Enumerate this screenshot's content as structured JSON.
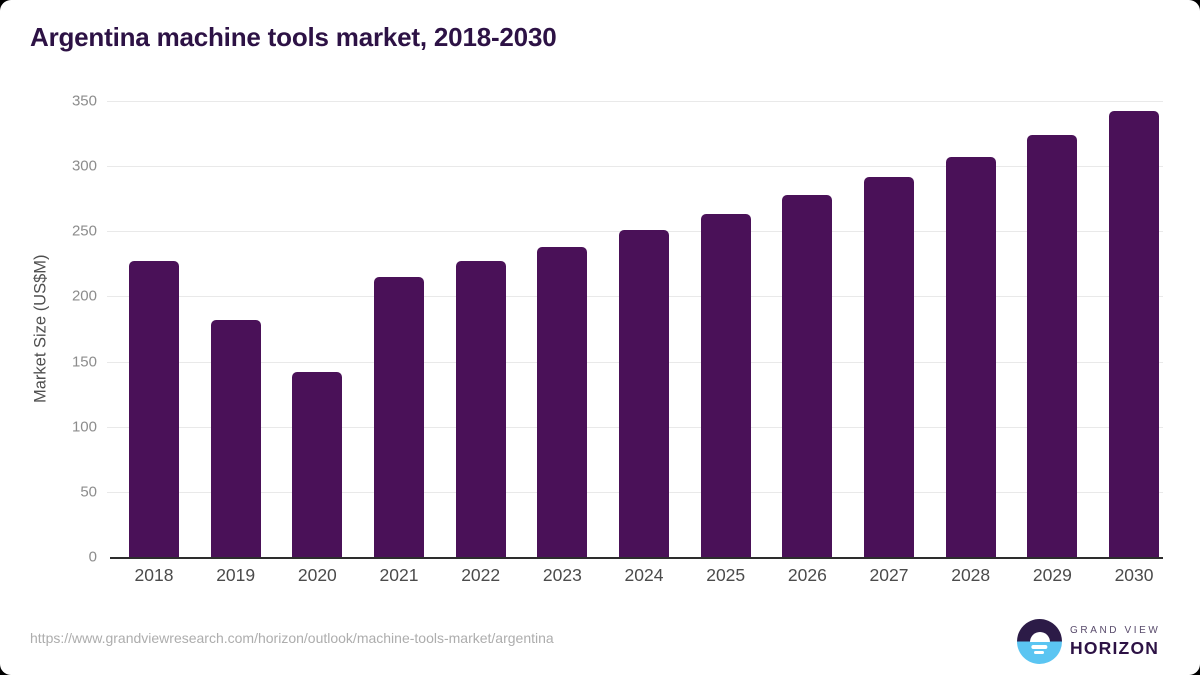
{
  "title": "Argentina machine tools market, 2018-2030",
  "chart_data": {
    "type": "bar",
    "title": "Argentina machine tools market, 2018-2030",
    "categories": [
      "2018",
      "2019",
      "2020",
      "2021",
      "2022",
      "2023",
      "2024",
      "2025",
      "2026",
      "2027",
      "2028",
      "2029",
      "2030"
    ],
    "values": [
      227,
      182,
      142,
      215,
      227,
      238,
      251,
      263,
      278,
      292,
      307,
      324,
      342
    ],
    "xlabel": "",
    "ylabel": "Market Size (US$M)",
    "ylim": [
      0,
      350
    ],
    "yticks": [
      0,
      50,
      100,
      150,
      200,
      250,
      300,
      350
    ],
    "grid": true,
    "legend": "none",
    "bar_color": "#4a1158"
  },
  "footer": {
    "source_url": "https://www.grandviewresearch.com/horizon/outlook/machine-tools-market/argentina",
    "logo": {
      "top_text": "GRAND VIEW",
      "bottom_text": "HORIZON"
    }
  },
  "colors": {
    "bar": "#4a1158",
    "title_text": "#2d1245",
    "gridline": "#e9e9e9",
    "axis_line": "#2d2d2d",
    "y_tick_text": "#8c8c8c",
    "x_tick_text": "#4b4b4b",
    "url_text": "#adadad",
    "logo_blue": "#5bc5f2",
    "logo_dark": "#2c1b47"
  }
}
